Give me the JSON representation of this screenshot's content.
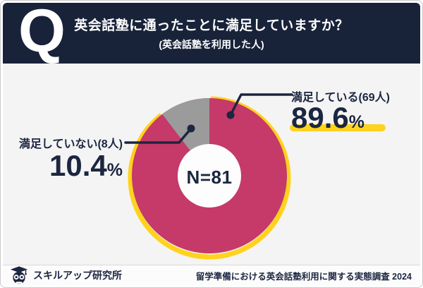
{
  "header": {
    "q": "Q",
    "title": "英会話塾に通ったことに満足していますか？",
    "subtitle": "(英会話塾を利用した人)"
  },
  "chart_data": {
    "type": "pie",
    "donut": true,
    "title": "英会話塾に通ったことに満足していますか？",
    "subtitle": "(英会話塾を利用した人)",
    "sample_label": "N=81",
    "sample_size": 81,
    "categories": [
      "満足している",
      "満足していない"
    ],
    "values": [
      69,
      8
    ],
    "percents": [
      89.6,
      10.4
    ],
    "colors": [
      "#C53A68",
      "#9B9B9B"
    ],
    "start_angle_deg": 0,
    "direction": "clockwise",
    "highlight_ring_color": "#FFD21E",
    "legend_position": "callouts"
  },
  "labels": {
    "satisfied": {
      "name": "満足している(69人)",
      "value": "89.6",
      "unit": "%"
    },
    "unsatisfied": {
      "name": "満足していない(8人)",
      "value": "10.4",
      "unit": "%"
    }
  },
  "center_label": "N=81",
  "footer": {
    "brand": "スキルアップ研究所",
    "source": "留学準備における英会話塾利用に関する実態調査 2024"
  },
  "colors": {
    "header_bg": "#18233A",
    "text_navy": "#1C2640",
    "satisfied_pink": "#C53A68",
    "unsatisfied_gray": "#9B9B9B",
    "accent_yellow": "#FFD21E",
    "panel_bg": "#F4F4F4"
  }
}
